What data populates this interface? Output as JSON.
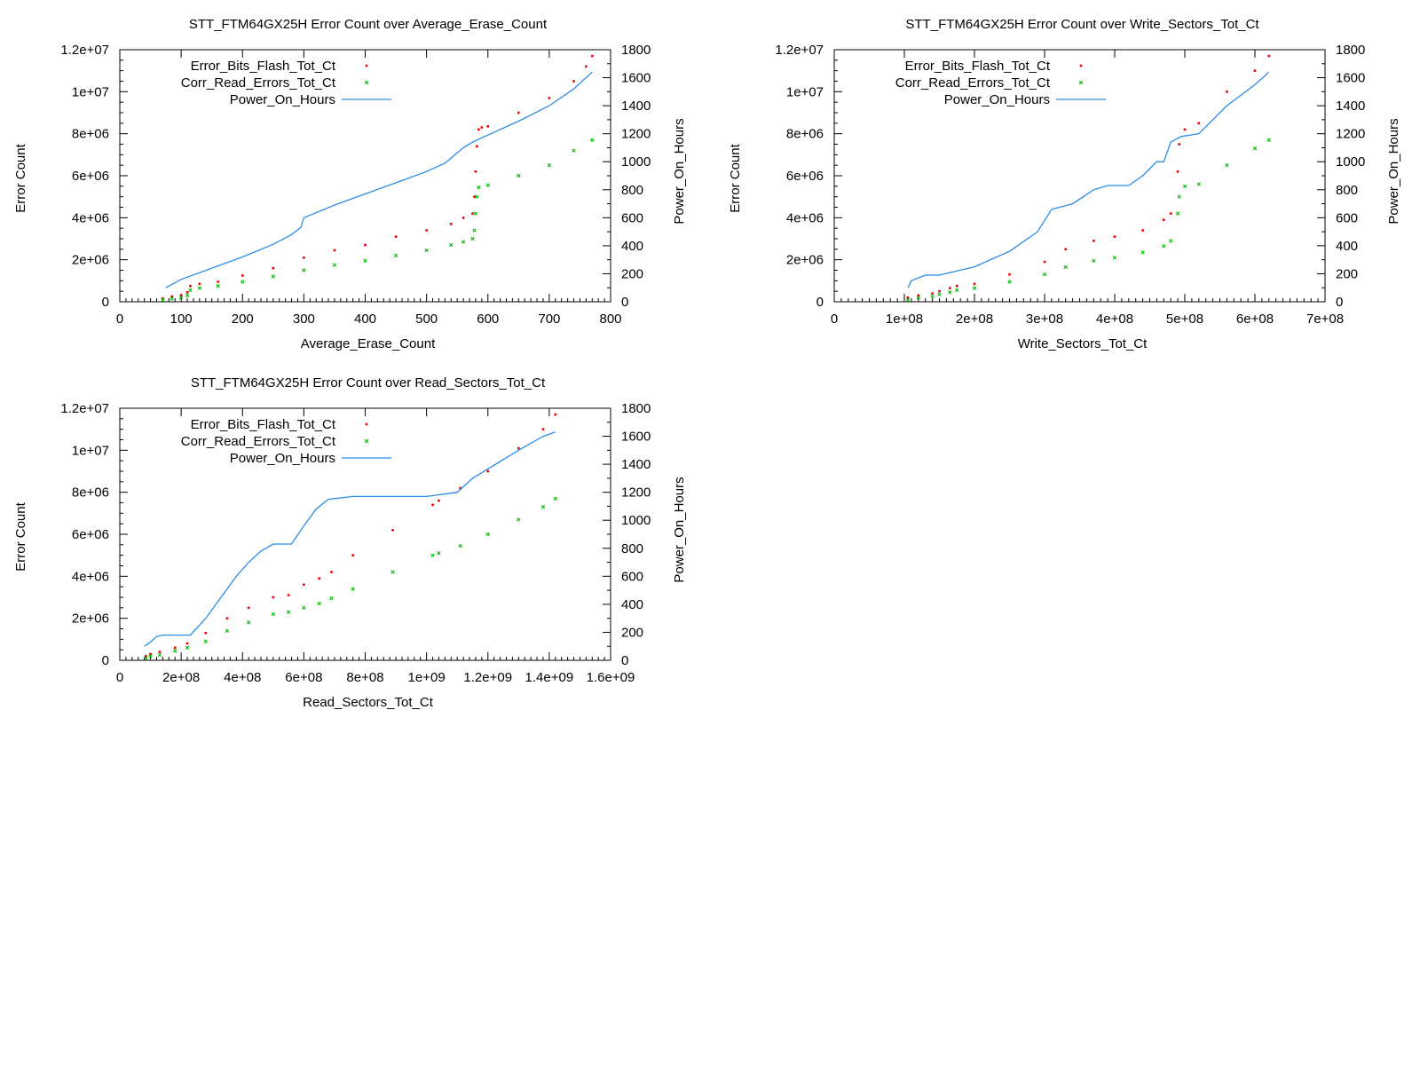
{
  "colors": {
    "error_bits": "#ee0000",
    "corr_read": "#00bb00",
    "power_on": "#2b8ce8",
    "frame": "#000000"
  },
  "chart_data": [
    {
      "type": "scatter",
      "title": "STT_FTM64GX25H Error Count over Average_Erase_Count",
      "xlabel": "Average_Erase_Count",
      "ylabel": "Error Count",
      "y2label": "Power_On_Hours",
      "xlim": [
        0,
        800
      ],
      "ylim": [
        0,
        12000000
      ],
      "y2lim": [
        0,
        1800
      ],
      "xticks": [
        0,
        100,
        200,
        300,
        400,
        500,
        600,
        700,
        800
      ],
      "xtick_labels": [
        "0",
        "100",
        "200",
        "300",
        "400",
        "500",
        "600",
        "700",
        "800"
      ],
      "yticks": [
        0,
        2000000,
        4000000,
        6000000,
        8000000,
        10000000,
        12000000
      ],
      "ytick_labels": [
        "0",
        "2e+06",
        "4e+06",
        "6e+06",
        "8e+06",
        "1e+07",
        "1.2e+07"
      ],
      "y2ticks": [
        0,
        200,
        400,
        600,
        800,
        1000,
        1200,
        1400,
        1600,
        1800
      ],
      "y2tick_labels": [
        "0",
        "200",
        "400",
        "600",
        "800",
        "1000",
        "1200",
        "1400",
        "1600",
        "1800"
      ],
      "grid": false,
      "legend_position": "top-left",
      "series": [
        {
          "name": "Error_Bits_Flash_Tot_Ct",
          "style": "points",
          "axis": "y",
          "x": [
            70,
            85,
            100,
            110,
            115,
            130,
            160,
            200,
            250,
            300,
            350,
            400,
            450,
            500,
            540,
            560,
            575,
            578,
            580,
            582,
            585,
            590,
            600,
            650,
            700,
            740,
            760,
            770
          ],
          "y": [
            150000,
            250000,
            300000,
            450000,
            750000,
            850000,
            950000,
            1250000,
            1600000,
            2100000,
            2450000,
            2700000,
            3100000,
            3400000,
            3700000,
            4000000,
            4200000,
            5000000,
            6200000,
            7400000,
            8200000,
            8300000,
            8350000,
            9000000,
            9700000,
            10500000,
            11200000,
            11700000
          ]
        },
        {
          "name": "Corr_Read_Errors_Tot_Ct",
          "style": "points",
          "axis": "y",
          "x": [
            70,
            85,
            100,
            110,
            115,
            130,
            160,
            200,
            250,
            300,
            350,
            400,
            450,
            500,
            540,
            560,
            575,
            578,
            580,
            582,
            585,
            600,
            650,
            700,
            740,
            770
          ],
          "y": [
            80000,
            150000,
            200000,
            300000,
            550000,
            650000,
            750000,
            950000,
            1200000,
            1500000,
            1750000,
            1950000,
            2200000,
            2450000,
            2700000,
            2850000,
            3000000,
            3400000,
            4200000,
            5000000,
            5450000,
            5550000,
            6000000,
            6500000,
            7200000,
            7700000
          ]
        },
        {
          "name": "Power_On_Hours",
          "style": "line",
          "axis": "y2",
          "x": [
            75,
            100,
            150,
            200,
            250,
            280,
            295,
            300,
            350,
            400,
            450,
            500,
            530,
            560,
            575,
            600,
            650,
            700,
            740,
            770
          ],
          "y": [
            100,
            160,
            240,
            320,
            410,
            480,
            530,
            600,
            690,
            770,
            850,
            930,
            990,
            1100,
            1140,
            1190,
            1290,
            1400,
            1520,
            1640
          ]
        }
      ]
    },
    {
      "type": "scatter",
      "title": "STT_FTM64GX25H Error Count over Write_Sectors_Tot_Ct",
      "xlabel": "Write_Sectors_Tot_Ct",
      "ylabel": "Error Count",
      "y2label": "Power_On_Hours",
      "xlim": [
        0,
        700000000
      ],
      "ylim": [
        0,
        12000000
      ],
      "y2lim": [
        0,
        1800
      ],
      "xticks": [
        0,
        100000000,
        200000000,
        300000000,
        400000000,
        500000000,
        600000000,
        700000000
      ],
      "xtick_labels": [
        "0",
        "1e+08",
        "2e+08",
        "3e+08",
        "4e+08",
        "5e+08",
        "6e+08",
        "7e+08"
      ],
      "yticks": [
        0,
        2000000,
        4000000,
        6000000,
        8000000,
        10000000,
        12000000
      ],
      "ytick_labels": [
        "0",
        "2e+06",
        "4e+06",
        "6e+06",
        "8e+06",
        "1e+07",
        "1.2e+07"
      ],
      "y2ticks": [
        0,
        200,
        400,
        600,
        800,
        1000,
        1200,
        1400,
        1600,
        1800
      ],
      "y2tick_labels": [
        "0",
        "200",
        "400",
        "600",
        "800",
        "1000",
        "1200",
        "1400",
        "1600",
        "1800"
      ],
      "grid": false,
      "legend_position": "top-left",
      "series": [
        {
          "name": "Error_Bits_Flash_Tot_Ct",
          "style": "points",
          "axis": "y",
          "x": [
            105000000,
            120000000,
            140000000,
            150000000,
            165000000,
            175000000,
            200000000,
            250000000,
            300000000,
            330000000,
            370000000,
            400000000,
            440000000,
            470000000,
            480000000,
            490000000,
            492000000,
            500000000,
            520000000,
            560000000,
            600000000,
            620000000
          ],
          "y": [
            200000,
            300000,
            400000,
            500000,
            650000,
            750000,
            850000,
            1300000,
            1900000,
            2500000,
            2900000,
            3100000,
            3400000,
            3900000,
            4200000,
            6200000,
            7500000,
            8200000,
            8500000,
            10000000,
            11000000,
            11700000
          ]
        },
        {
          "name": "Corr_Read_Errors_Tot_Ct",
          "style": "points",
          "axis": "y",
          "x": [
            105000000,
            120000000,
            140000000,
            150000000,
            165000000,
            175000000,
            200000000,
            250000000,
            300000000,
            330000000,
            370000000,
            400000000,
            440000000,
            470000000,
            480000000,
            490000000,
            492000000,
            500000000,
            520000000,
            560000000,
            600000000,
            620000000
          ],
          "y": [
            100000,
            200000,
            250000,
            350000,
            450000,
            550000,
            650000,
            950000,
            1300000,
            1650000,
            1950000,
            2100000,
            2350000,
            2650000,
            2900000,
            4200000,
            5000000,
            5500000,
            5600000,
            6500000,
            7300000,
            7700000
          ]
        },
        {
          "name": "Power_On_Hours",
          "style": "line",
          "axis": "y2",
          "x": [
            105000000,
            110000000,
            130000000,
            150000000,
            200000000,
            250000000,
            290000000,
            310000000,
            340000000,
            370000000,
            390000000,
            420000000,
            440000000,
            460000000,
            470000000,
            480000000,
            495000000,
            520000000,
            560000000,
            600000000,
            620000000
          ],
          "y": [
            100,
            150,
            190,
            190,
            250,
            360,
            500,
            660,
            700,
            800,
            830,
            830,
            900,
            1000,
            1000,
            1140,
            1180,
            1200,
            1400,
            1550,
            1640
          ]
        }
      ]
    },
    {
      "type": "scatter",
      "title": "STT_FTM64GX25H Error Count over Read_Sectors_Tot_Ct",
      "xlabel": "Read_Sectors_Tot_Ct",
      "ylabel": "Error Count",
      "y2label": "Power_On_Hours",
      "xlim": [
        0,
        1600000000
      ],
      "ylim": [
        0,
        12000000
      ],
      "y2lim": [
        0,
        1800
      ],
      "xticks": [
        0,
        200000000,
        400000000,
        600000000,
        800000000,
        1000000000,
        1200000000,
        1400000000,
        1600000000
      ],
      "xtick_labels": [
        "0",
        "2e+08",
        "4e+08",
        "6e+08",
        "8e+08",
        "1e+09",
        "1.2e+09",
        "1.4e+09",
        "1.6e+09"
      ],
      "yticks": [
        0,
        2000000,
        4000000,
        6000000,
        8000000,
        10000000,
        12000000
      ],
      "ytick_labels": [
        "0",
        "2e+06",
        "4e+06",
        "6e+06",
        "8e+06",
        "1e+07",
        "1.2e+07"
      ],
      "y2ticks": [
        0,
        200,
        400,
        600,
        800,
        1000,
        1200,
        1400,
        1600,
        1800
      ],
      "y2tick_labels": [
        "0",
        "200",
        "400",
        "600",
        "800",
        "1000",
        "1200",
        "1400",
        "1600",
        "1800"
      ],
      "grid": false,
      "legend_position": "top-left",
      "series": [
        {
          "name": "Error_Bits_Flash_Tot_Ct",
          "style": "points",
          "axis": "y",
          "x": [
            85000000,
            100000000,
            130000000,
            180000000,
            220000000,
            280000000,
            350000000,
            420000000,
            500000000,
            550000000,
            600000000,
            650000000,
            690000000,
            760000000,
            890000000,
            1020000000,
            1040000000,
            1110000000,
            1200000000,
            1300000000,
            1380000000,
            1420000000
          ],
          "y": [
            200000,
            300000,
            400000,
            600000,
            800000,
            1300000,
            2000000,
            2500000,
            3000000,
            3100000,
            3600000,
            3900000,
            4200000,
            5000000,
            6200000,
            7400000,
            7600000,
            8200000,
            9000000,
            10100000,
            11000000,
            11700000
          ]
        },
        {
          "name": "Corr_Read_Errors_Tot_Ct",
          "style": "points",
          "axis": "y",
          "x": [
            85000000,
            100000000,
            130000000,
            180000000,
            220000000,
            280000000,
            350000000,
            420000000,
            500000000,
            550000000,
            600000000,
            650000000,
            690000000,
            760000000,
            890000000,
            1020000000,
            1040000000,
            1110000000,
            1200000000,
            1300000000,
            1380000000,
            1420000000
          ],
          "y": [
            100000,
            200000,
            250000,
            450000,
            600000,
            900000,
            1400000,
            1800000,
            2200000,
            2300000,
            2500000,
            2700000,
            2950000,
            3400000,
            4200000,
            5000000,
            5100000,
            5450000,
            6000000,
            6700000,
            7300000,
            7700000
          ]
        },
        {
          "name": "Power_On_Hours",
          "style": "line",
          "axis": "y2",
          "x": [
            80000000,
            100000000,
            120000000,
            140000000,
            160000000,
            230000000,
            280000000,
            330000000,
            380000000,
            420000000,
            460000000,
            500000000,
            560000000,
            600000000,
            640000000,
            680000000,
            760000000,
            1000000000,
            1100000000,
            1150000000,
            1300000000,
            1380000000,
            1420000000
          ],
          "y": [
            100,
            130,
            170,
            180,
            180,
            180,
            300,
            450,
            600,
            700,
            780,
            830,
            830,
            960,
            1080,
            1150,
            1170,
            1170,
            1200,
            1300,
            1500,
            1600,
            1630
          ]
        }
      ]
    }
  ]
}
